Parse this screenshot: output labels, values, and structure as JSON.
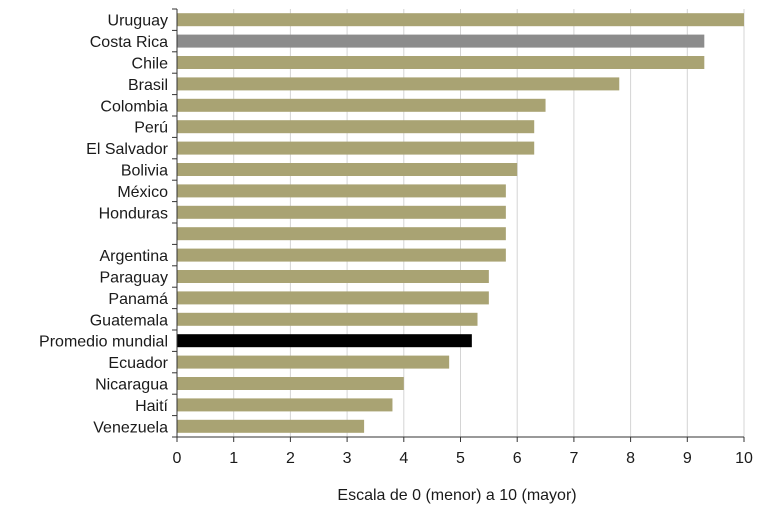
{
  "chart_data": {
    "type": "bar",
    "orientation": "horizontal",
    "categories": [
      "Uruguay",
      "Costa Rica",
      "Chile",
      "Brasil",
      "Colombia",
      "Perú",
      "El Salvador",
      "Bolivia",
      "México",
      "Honduras",
      "",
      "Argentina",
      "Paraguay",
      "Panamá",
      "Guatemala",
      "Promedio mundial",
      "Ecuador",
      "Nicaragua",
      "Haití",
      "Venezuela"
    ],
    "values": [
      10.0,
      9.3,
      9.3,
      7.8,
      6.5,
      6.3,
      6.3,
      6.0,
      5.8,
      5.8,
      5.8,
      5.8,
      5.5,
      5.5,
      5.3,
      5.2,
      4.8,
      4.0,
      3.8,
      3.3
    ],
    "highlight": {
      "Costa Rica": "#8c8c8c",
      "Promedio mundial": "#000000"
    },
    "default_color": "#a9a373",
    "title": "",
    "xlabel": "Escala de 0 (menor) a 10 (mayor)",
    "ylabel": "",
    "xlim": [
      0,
      10
    ],
    "xticks": [
      0,
      1,
      2,
      3,
      4,
      5,
      6,
      7,
      8,
      9,
      10
    ],
    "grid": "vertical",
    "legend": "none"
  }
}
